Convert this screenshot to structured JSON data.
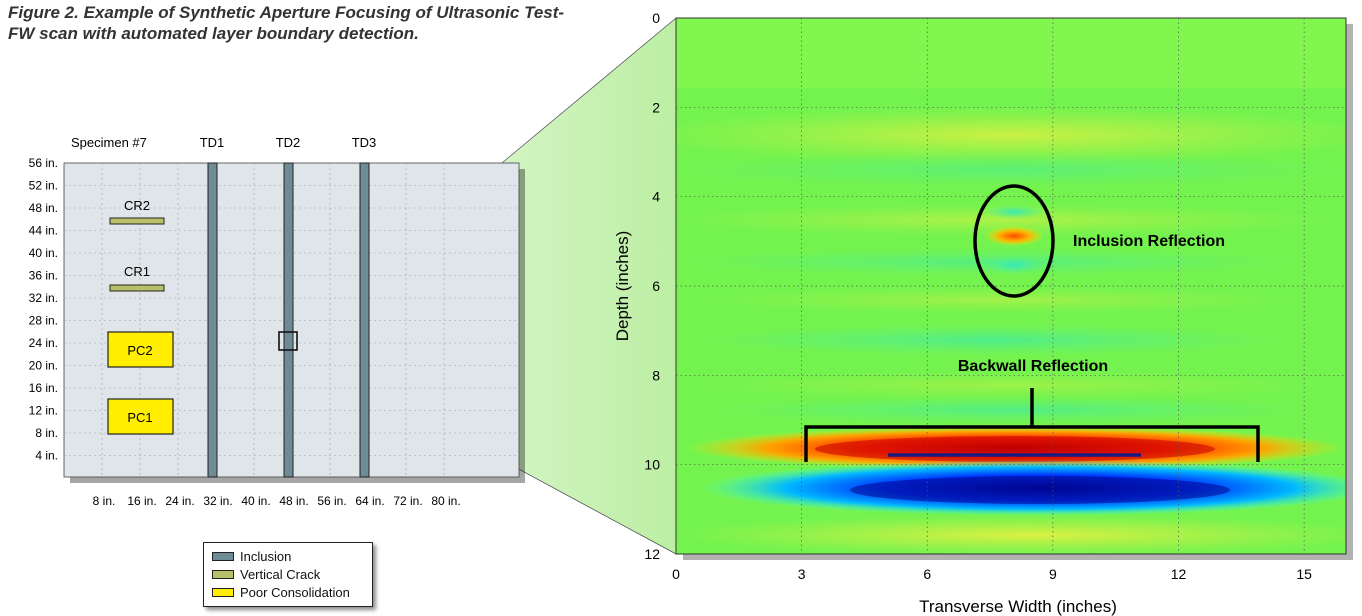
{
  "caption": "Figure 2. Example of Synthetic Aperture Focusing of Ultrasonic Test-FW scan with automated layer boundary detection.",
  "specimen_diagram": {
    "title": "Specimen #7",
    "top_labels": [
      "TD1",
      "TD2",
      "TD3"
    ],
    "y_labels": [
      "56 in.",
      "52 in.",
      "48 in.",
      "44 in.",
      "40 in.",
      "36 in.",
      "32 in.",
      "28 in.",
      "24 in.",
      "20 in.",
      "16 in.",
      "12 in.",
      "8 in.",
      "4 in."
    ],
    "x_labels": [
      "8 in.",
      "16 in.",
      "24 in.",
      "32 in.",
      "40 in.",
      "48 in.",
      "56 in.",
      "64 in.",
      "72 in.",
      "80 in."
    ],
    "features": [
      {
        "label": "CR2",
        "type": "Vertical Crack"
      },
      {
        "label": "CR1",
        "type": "Vertical Crack"
      },
      {
        "label": "PC2",
        "type": "Poor Consolidation"
      },
      {
        "label": "PC1",
        "type": "Poor Consolidation"
      }
    ]
  },
  "legend": [
    {
      "label": "Inclusion",
      "color": "#6f8b95"
    },
    {
      "label": "Vertical Crack",
      "color": "#b9c06a"
    },
    {
      "label": "Poor Consolidation",
      "color": "#ffee00"
    }
  ],
  "scan": {
    "xlabel": "Transverse Width (inches)",
    "ylabel": "Depth (inches)",
    "x_ticks": [
      "0",
      "3",
      "6",
      "9",
      "12",
      "15"
    ],
    "y_ticks": [
      "0",
      "2",
      "4",
      "6",
      "8",
      "10",
      "12"
    ],
    "xlim": [
      0,
      16
    ],
    "ylim": [
      0,
      12
    ],
    "annotations": [
      "Inclusion Reflection",
      "Backwall Reflection"
    ]
  },
  "colors": {
    "inclusion": "#6f8b95",
    "crack": "#b9c06a",
    "consolidation": "#ffee00",
    "specimen_bg": "#dfe5e8",
    "zoom_highlight": "#c7f0b8"
  }
}
